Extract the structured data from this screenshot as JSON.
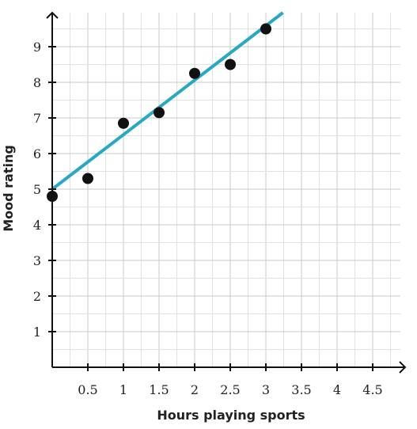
{
  "chart_data": {
    "type": "scatter",
    "title": "",
    "xlabel": "Hours playing sports",
    "ylabel": "Mood rating",
    "xlim": [
      0,
      5
    ],
    "ylim": [
      0,
      10
    ],
    "x_ticks": [
      0.5,
      1,
      1.5,
      2,
      2.5,
      3,
      3.5,
      4,
      4.5
    ],
    "x_tick_labels": [
      "0.5",
      "1",
      "1.5",
      "2",
      "2.5",
      "3",
      "3.5",
      "4",
      "4.5"
    ],
    "y_ticks": [
      1,
      2,
      3,
      4,
      5,
      6,
      7,
      8,
      9
    ],
    "y_tick_labels": [
      "1",
      "2",
      "3",
      "4",
      "5",
      "6",
      "7",
      "8",
      "9"
    ],
    "grid": true,
    "points": [
      {
        "x": 0,
        "y": 4.8
      },
      {
        "x": 0.5,
        "y": 5.3
      },
      {
        "x": 1,
        "y": 6.85
      },
      {
        "x": 1.5,
        "y": 7.15
      },
      {
        "x": 2,
        "y": 8.25
      },
      {
        "x": 2.5,
        "y": 8.5
      },
      {
        "x": 3,
        "y": 9.5
      }
    ],
    "trend_line": {
      "slope": 1.53,
      "intercept": 5.0,
      "color": "#29a8c2"
    },
    "point_color": "#111111"
  }
}
